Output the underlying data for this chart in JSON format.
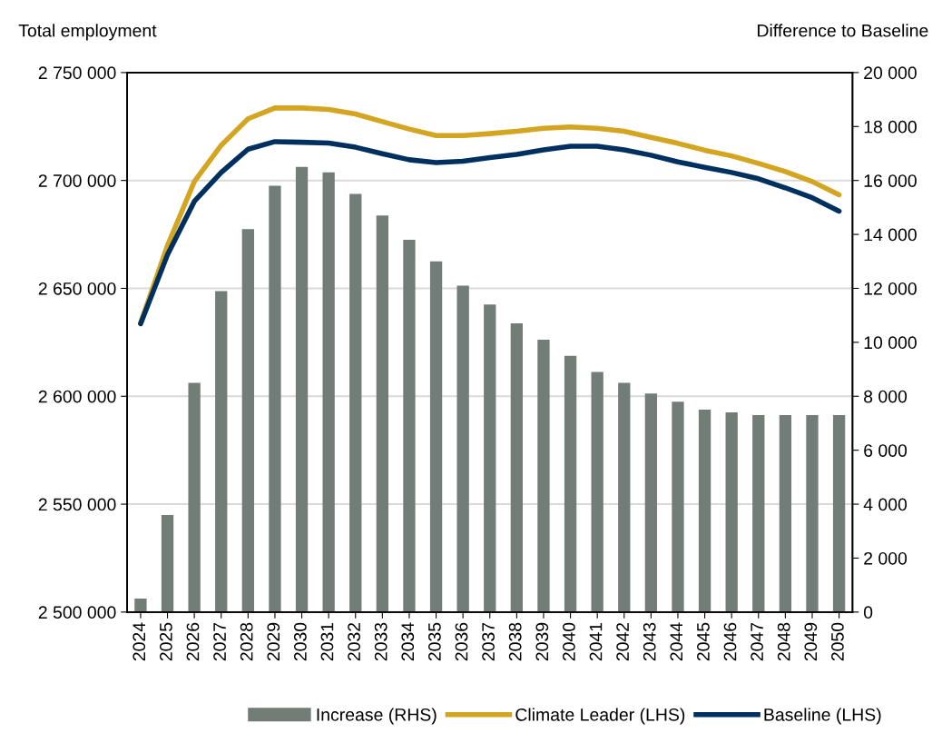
{
  "chart_data": {
    "type": "bar",
    "ylabel": "Total employment",
    "y2label": "Difference to Baseline",
    "categories": [
      "2024",
      "2025",
      "2026",
      "2027",
      "2028",
      "2029",
      "2030",
      "2031",
      "2032",
      "2033",
      "2034",
      "2035",
      "2036",
      "2037",
      "2038",
      "2039",
      "2040",
      "2041",
      "2042",
      "2043",
      "2044",
      "2045",
      "2046",
      "2047",
      "2048",
      "2049",
      "2050"
    ],
    "series": [
      {
        "name": "Increase (RHS)",
        "axis": "y2",
        "color": "#737d77",
        "values": [
          500,
          3600,
          8500,
          11900,
          14200,
          15800,
          16500,
          16300,
          15500,
          14700,
          13800,
          13000,
          12100,
          11400,
          10700,
          10100,
          9500,
          8900,
          8500,
          8100,
          7800,
          7500,
          7400,
          7300,
          7300,
          7300,
          7300
        ]
      },
      {
        "name": "Climate Leader (LHS)",
        "type": "line",
        "color": "#d4a520",
        "values": [
          2634000,
          2669800,
          2699500,
          2716300,
          2728600,
          2733600,
          2733600,
          2732900,
          2730800,
          2727300,
          2723800,
          2720800,
          2720800,
          2721700,
          2722800,
          2724200,
          2724800,
          2724200,
          2722800,
          2720000,
          2717200,
          2714000,
          2711400,
          2707900,
          2704100,
          2699500,
          2693300
        ]
      },
      {
        "name": "Baseline (LHS)",
        "type": "line",
        "color": "#00305f",
        "values": [
          2633600,
          2665600,
          2690300,
          2703700,
          2714500,
          2718000,
          2717700,
          2717300,
          2715400,
          2712400,
          2709600,
          2708300,
          2708900,
          2710600,
          2712100,
          2714200,
          2715900,
          2715900,
          2714200,
          2711700,
          2708600,
          2706100,
          2703700,
          2700800,
          2696600,
          2692000,
          2685800
        ]
      }
    ],
    "ylim": [
      2500000,
      2750000
    ],
    "yticks": [
      {
        "value": 2500000,
        "label": "2 500 000"
      },
      {
        "value": 2550000,
        "label": "2 550 000"
      },
      {
        "value": 2600000,
        "label": "2 600 000"
      },
      {
        "value": 2650000,
        "label": "2 650 000"
      },
      {
        "value": 2700000,
        "label": "2 700 000"
      },
      {
        "value": 2750000,
        "label": "2 750 000"
      }
    ],
    "y2lim": [
      0,
      20000
    ],
    "y2ticks": [
      0,
      {
        "value": 2000,
        "label": "2 000"
      },
      {
        "value": 4000,
        "label": "4 000"
      },
      {
        "value": 6000,
        "label": "6 000"
      },
      {
        "value": 8000,
        "label": "8 000"
      },
      {
        "value": 10000,
        "label": "10 000"
      },
      {
        "value": 12000,
        "label": "12 000"
      },
      {
        "value": 14000,
        "label": "14 000"
      },
      {
        "value": 16000,
        "label": "16 000"
      },
      {
        "value": 18000,
        "label": "18 000"
      },
      {
        "value": 20000,
        "label": "20 000"
      }
    ],
    "grid": "y",
    "legend": "bottom",
    "marker": "none",
    "line_style": "solid"
  }
}
